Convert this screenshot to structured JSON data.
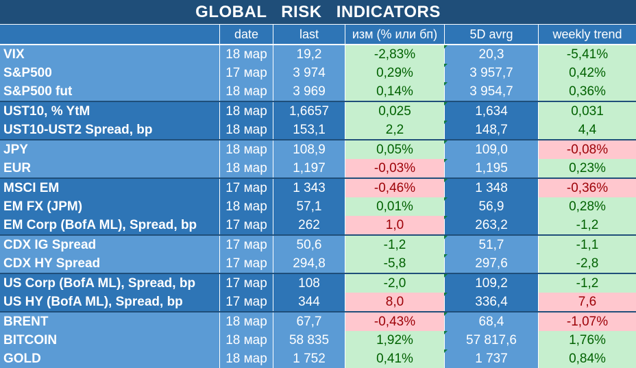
{
  "title": "GLOBAL   RISK   INDICATORS",
  "headers": {
    "name": "",
    "date": "date",
    "last": "last",
    "change": "изм (% или бп)",
    "avg": "5D avrg",
    "weekly": "weekly trend"
  },
  "status_colors": {
    "positive": "#c6efce",
    "negative": "#ffc7ce"
  },
  "groups": [
    {
      "rows": [
        {
          "name": "VIX",
          "date": "18 мар",
          "last": "19,2",
          "change": "-2,83%",
          "change_status": "positive",
          "avg": "20,3",
          "weekly": "-5,41%",
          "weekly_status": "positive"
        },
        {
          "name": "S&P500",
          "date": "17 мар",
          "last": "3 974",
          "change": "0,29%",
          "change_status": "positive",
          "avg": "3 957,7",
          "weekly": "0,42%",
          "weekly_status": "positive"
        },
        {
          "name": "S&P500 fut",
          "date": "18 мар",
          "last": "3 969",
          "change": "0,14%",
          "change_status": "positive",
          "avg": "3 954,7",
          "weekly": "0,36%",
          "weekly_status": "positive"
        }
      ]
    },
    {
      "rows": [
        {
          "name": "UST10, % YtM",
          "date": "18 мар",
          "last": "1,6657",
          "change": "0,025",
          "change_status": "positive",
          "avg": "1,634",
          "weekly": "0,031",
          "weekly_status": "positive"
        },
        {
          "name": "UST10-UST2 Spread, bp",
          "date": "18 мар",
          "last": "153,1",
          "change": "2,2",
          "change_status": "positive",
          "avg": "148,7",
          "weekly": "4,4",
          "weekly_status": "positive"
        }
      ]
    },
    {
      "rows": [
        {
          "name": "JPY",
          "date": "18 мар",
          "last": "108,9",
          "change": "0,05%",
          "change_status": "positive",
          "avg": "109,0",
          "weekly": "-0,08%",
          "weekly_status": "negative"
        },
        {
          "name": "EUR",
          "date": "18 мар",
          "last": "1,197",
          "change": "-0,03%",
          "change_status": "negative",
          "avg": "1,195",
          "weekly": "0,23%",
          "weekly_status": "positive"
        }
      ]
    },
    {
      "rows": [
        {
          "name": "MSCI EM",
          "date": "17 мар",
          "last": "1 343",
          "change": "-0,46%",
          "change_status": "negative",
          "avg": "1 348",
          "weekly": "-0,36%",
          "weekly_status": "negative"
        },
        {
          "name": "EM FX (JPM)",
          "date": "18 мар",
          "last": "57,1",
          "change": "0,01%",
          "change_status": "positive",
          "avg": "56,9",
          "weekly": "0,28%",
          "weekly_status": "positive"
        },
        {
          "name": "EM Corp (BofA ML), Spread, bp",
          "date": "17 мар",
          "last": "262",
          "change": "1,0",
          "change_status": "negative",
          "avg": "263,2",
          "weekly": "-1,2",
          "weekly_status": "positive"
        }
      ]
    },
    {
      "rows": [
        {
          "name": "CDX IG Spread",
          "date": "17 мар",
          "last": "50,6",
          "change": "-1,2",
          "change_status": "positive",
          "avg": "51,7",
          "weekly": "-1,1",
          "weekly_status": "positive"
        },
        {
          "name": "CDX HY Spread",
          "date": "17 мар",
          "last": "294,8",
          "change": "-5,8",
          "change_status": "positive",
          "avg": "297,6",
          "weekly": "-2,8",
          "weekly_status": "positive"
        }
      ]
    },
    {
      "rows": [
        {
          "name": "US Corp (BofA ML), Spread, bp",
          "date": "17 мар",
          "last": "108",
          "change": "-2,0",
          "change_status": "positive",
          "avg": "109,2",
          "weekly": "-1,2",
          "weekly_status": "positive"
        },
        {
          "name": "US HY (BofA ML), Spread, bp",
          "date": "17 мар",
          "last": "344",
          "change": "8,0",
          "change_status": "negative",
          "avg": "336,4",
          "weekly": "7,6",
          "weekly_status": "negative"
        }
      ]
    },
    {
      "rows": [
        {
          "name": "BRENT",
          "date": "18 мар",
          "last": "67,7",
          "change": "-0,43%",
          "change_status": "negative",
          "avg": "68,4",
          "weekly": "-1,07%",
          "weekly_status": "negative"
        },
        {
          "name": "BITCOIN",
          "date": "18 мар",
          "last": "58 835",
          "change": "1,92%",
          "change_status": "positive",
          "avg": "57 817,6",
          "weekly": "1,76%",
          "weekly_status": "positive"
        },
        {
          "name": "GOLD",
          "date": "18 мар",
          "last": "1 752",
          "change": "0,41%",
          "change_status": "positive",
          "avg": "1 737",
          "weekly": "0,84%",
          "weekly_status": "positive"
        }
      ]
    }
  ]
}
